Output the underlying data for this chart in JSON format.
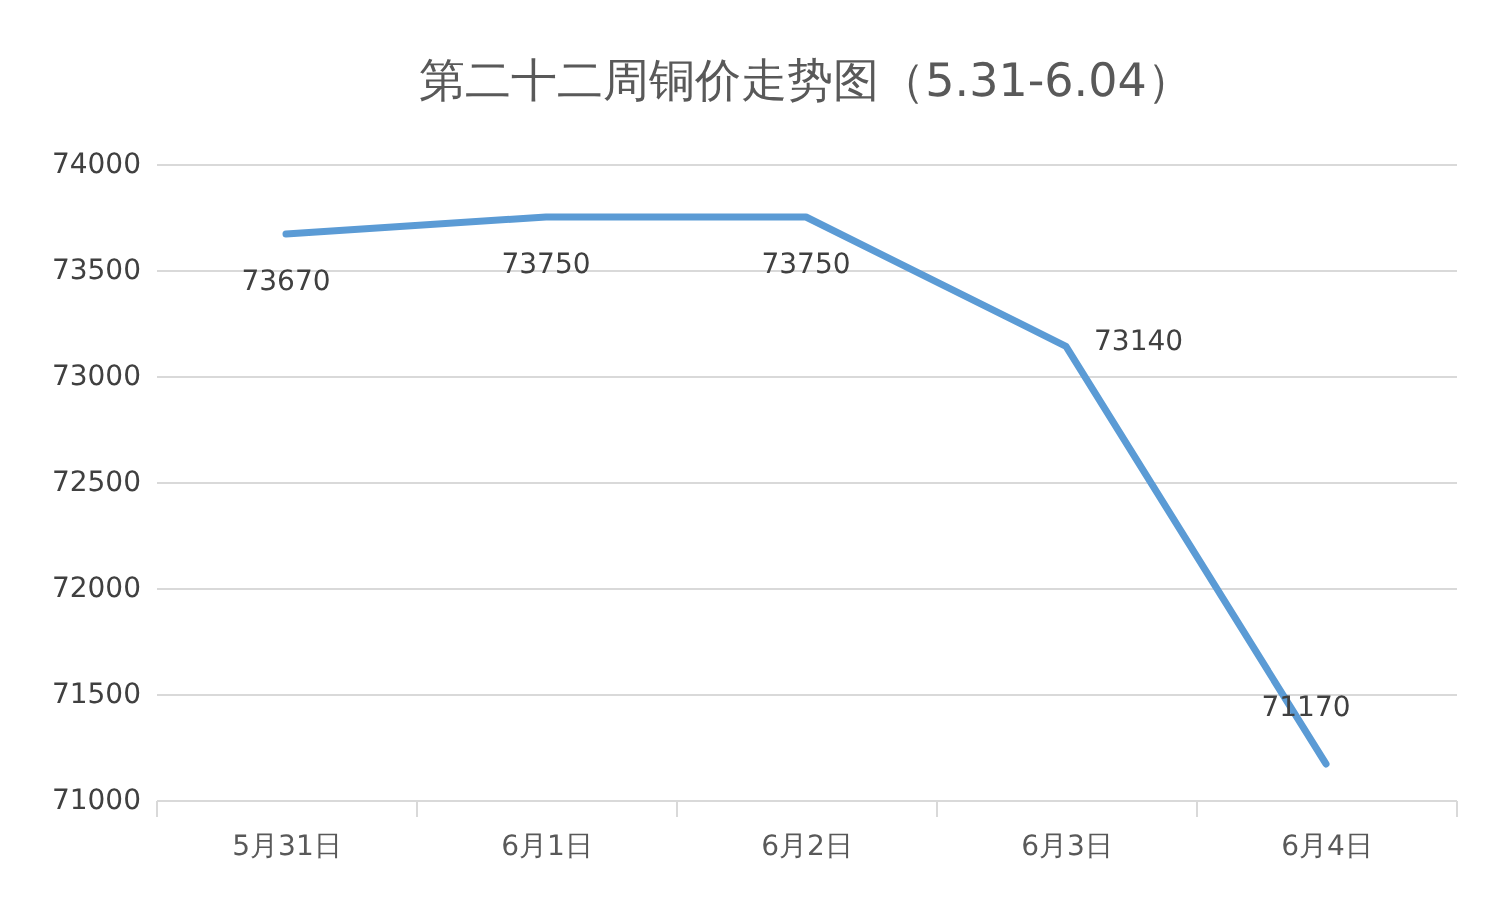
{
  "chart_data": {
    "type": "line",
    "title": "第二十二周铜价走势图（5.31-6.04）",
    "categories": [
      "5月31日",
      "6月1日",
      "6月2日",
      "6月3日",
      "6月4日"
    ],
    "series": [
      {
        "color": "#5b9bd5",
        "values": [
          73670,
          73750,
          73750,
          73140,
          71170
        ]
      }
    ],
    "ylim": [
      71000,
      74000
    ],
    "yticks": [
      71000,
      71500,
      72000,
      72500,
      73000,
      73500,
      74000
    ],
    "grid": "y",
    "data_labels": true,
    "marker": "none",
    "line_style": "solid"
  }
}
